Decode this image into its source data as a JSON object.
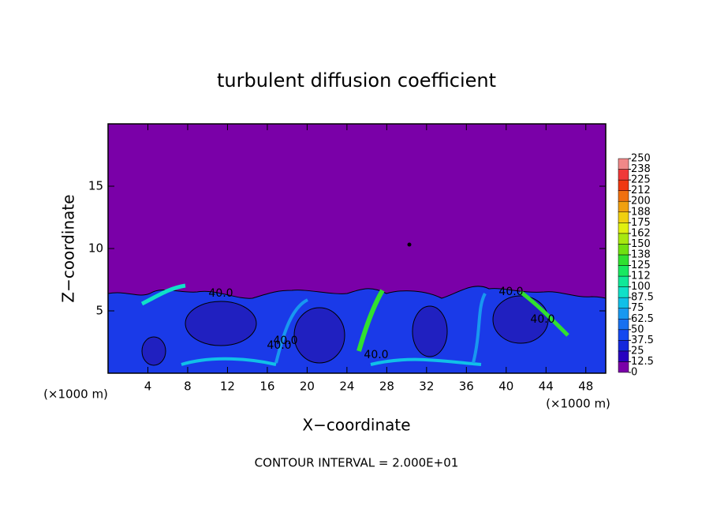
{
  "chart_data": {
    "type": "contour",
    "title": "turbulent diffusion coefficient",
    "x_label": "X−coordinate",
    "y_label": "Z−coordinate",
    "x_unit_labels": [
      "(×1000 m)",
      "(×1000 m)"
    ],
    "footer": "CONTOUR INTERVAL = 2.000E+01",
    "xlim": [
      0,
      50
    ],
    "xticks": [
      4,
      8,
      12,
      16,
      20,
      24,
      28,
      32,
      36,
      40,
      44,
      48
    ],
    "ylim": [
      0,
      20
    ],
    "yticks": [
      5,
      10,
      15
    ],
    "contour_labels": [
      "40.0",
      "40.0",
      "40.0",
      "40.0",
      "40.0",
      "40.0"
    ],
    "background_color": "#7a00a8",
    "colorbar": {
      "ticks": [
        0,
        12.5,
        25,
        37.5,
        50,
        62.5,
        75,
        87.5,
        100,
        {
          "value": 112.5,
          "label": "112"
        },
        125,
        {
          "value": 137.5,
          "label": "138"
        },
        150,
        {
          "value": 162.5,
          "label": "162"
        },
        175,
        {
          "value": 187.5,
          "label": "188"
        },
        200,
        {
          "value": 212.5,
          "label": "212"
        },
        225,
        {
          "value": 237.5,
          "label": "238"
        },
        250
      ],
      "colors": [
        "#7a00a8",
        "#2800c0",
        "#1428dc",
        "#1448f0",
        "#1870f0",
        "#1898f0",
        "#10c0e8",
        "#10e0c8",
        "#10e898",
        "#18e860",
        "#30e030",
        "#70e010",
        "#a8e810",
        "#e0f010",
        "#f0d010",
        "#f0a010",
        "#f07010",
        "#f03810",
        "#f03838",
        "#f08888"
      ]
    }
  }
}
